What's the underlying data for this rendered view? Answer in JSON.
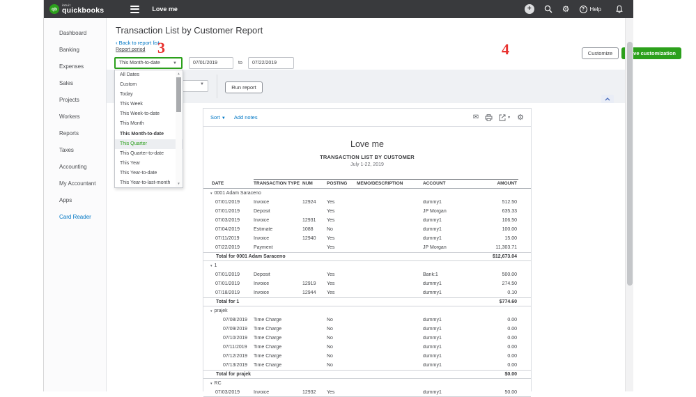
{
  "colors": {
    "brand_green": "#2ca01c",
    "link_blue": "#0077c5",
    "topbar_bg": "#393a3d",
    "annotation_red": "#e8312e",
    "selected_option_bg": "#eceef1"
  },
  "topbar": {
    "brand_intuit": "intuit",
    "brand_name": "quickbooks",
    "logo_monogram": "qb",
    "company": "Love me",
    "plus_glyph": "+",
    "help_question": "?",
    "help_label": "Help"
  },
  "sidebar": {
    "items": [
      {
        "label": "Dashboard",
        "accent": false
      },
      {
        "label": "Banking",
        "accent": false
      },
      {
        "label": "Expenses",
        "accent": false
      },
      {
        "label": "Sales",
        "accent": false
      },
      {
        "label": "Projects",
        "accent": false
      },
      {
        "label": "Workers",
        "accent": false
      },
      {
        "label": "Reports",
        "accent": false
      },
      {
        "label": "Taxes",
        "accent": false
      },
      {
        "label": "Accounting",
        "accent": false
      },
      {
        "label": "My Accountant",
        "accent": false
      },
      {
        "label": "Apps",
        "accent": false
      },
      {
        "label": "Card Reader",
        "accent": true
      }
    ]
  },
  "header": {
    "title": "Transaction List by Customer Report",
    "back_chevron": "‹",
    "back_link": "Back to report list",
    "report_period_label": "Report period",
    "period_value": "This Month-to-date",
    "date_from": "07/01/2019",
    "to_label": "to",
    "date_to": "07/22/2019",
    "customize_label": "Customize",
    "save_customization_label": "Save customization",
    "run_report_label": "Run report",
    "annotation_3": "3",
    "annotation_4": "4",
    "caret_glyph": "▼",
    "scroll_up_glyph": "▲",
    "scroll_down_glyph": "▼"
  },
  "period_menu": {
    "options": [
      {
        "label": "All Dates",
        "bold": false,
        "selected": false
      },
      {
        "label": "Custom",
        "bold": false,
        "selected": false
      },
      {
        "label": "Today",
        "bold": false,
        "selected": false
      },
      {
        "label": "This Week",
        "bold": false,
        "selected": false
      },
      {
        "label": "This Week-to-date",
        "bold": false,
        "selected": false
      },
      {
        "label": "This Month",
        "bold": false,
        "selected": false
      },
      {
        "label": "This Month-to-date",
        "bold": true,
        "selected": false
      },
      {
        "label": "This Quarter",
        "bold": false,
        "selected": true
      },
      {
        "label": "This Quarter-to-date",
        "bold": false,
        "selected": false
      },
      {
        "label": "This Year",
        "bold": false,
        "selected": false
      },
      {
        "label": "This Year-to-date",
        "bold": false,
        "selected": false
      },
      {
        "label": "This Year-to-last-month",
        "bold": false,
        "selected": false
      }
    ]
  },
  "report": {
    "toolbar": {
      "sort_label": "Sort",
      "add_notes_label": "Add notes"
    },
    "company": "Love me",
    "title": "TRANSACTION LIST BY CUSTOMER",
    "date_range": "July 1-22, 2019",
    "table": {
      "columns": [
        "DATE",
        "TRANSACTION TYPE",
        "NUM",
        "POSTING",
        "MEMO/DESCRIPTION",
        "ACCOUNT",
        "AMOUNT"
      ],
      "group_caret": "▾",
      "rows": [
        {
          "type": "group",
          "label": "0001 Adam Saraceno"
        },
        {
          "type": "data",
          "date": "07/01/2019",
          "txn_type": "Invoice",
          "num": "12924",
          "posting": "Yes",
          "memo": "",
          "account": "dummy1",
          "amount": "512.50",
          "indent": 0
        },
        {
          "type": "data",
          "date": "07/01/2019",
          "txn_type": "Deposit",
          "num": "",
          "posting": "Yes",
          "memo": "",
          "account": "JP Morgan",
          "amount": "635.33",
          "indent": 0
        },
        {
          "type": "data",
          "date": "07/03/2019",
          "txn_type": "Invoice",
          "num": "12931",
          "posting": "Yes",
          "memo": "",
          "account": "dummy1",
          "amount": "106.50",
          "indent": 0
        },
        {
          "type": "data",
          "date": "07/04/2019",
          "txn_type": "Estimate",
          "num": "1088",
          "posting": "No",
          "memo": "",
          "account": "dummy1",
          "amount": "100.00",
          "indent": 0
        },
        {
          "type": "data",
          "date": "07/11/2019",
          "txn_type": "Invoice",
          "num": "12940",
          "posting": "Yes",
          "memo": "",
          "account": "dummy1",
          "amount": "15.00",
          "indent": 0
        },
        {
          "type": "data",
          "date": "07/22/2019",
          "txn_type": "Payment",
          "num": "",
          "posting": "Yes",
          "memo": "",
          "account": "JP Morgan",
          "amount": "11,303.71",
          "indent": 0
        },
        {
          "type": "total",
          "label": "Total for 0001 Adam Saraceno",
          "amount": "$12,673.04"
        },
        {
          "type": "group",
          "label": "1"
        },
        {
          "type": "data",
          "date": "07/01/2019",
          "txn_type": "Deposit",
          "num": "",
          "posting": "Yes",
          "memo": "",
          "account": "Bank:1",
          "amount": "500.00",
          "indent": 0
        },
        {
          "type": "data",
          "date": "07/01/2019",
          "txn_type": "Invoice",
          "num": "12919",
          "posting": "Yes",
          "memo": "",
          "account": "dummy1",
          "amount": "274.50",
          "indent": 0
        },
        {
          "type": "data",
          "date": "07/18/2019",
          "txn_type": "Invoice",
          "num": "12944",
          "posting": "Yes",
          "memo": "",
          "account": "dummy1",
          "amount": "0.10",
          "indent": 0
        },
        {
          "type": "total",
          "label": "Total for 1",
          "amount": "$774.60"
        },
        {
          "type": "group",
          "label": "prajek"
        },
        {
          "type": "data",
          "date": "07/08/2019",
          "txn_type": "Time Charge",
          "num": "",
          "posting": "No",
          "memo": "",
          "account": "dummy1",
          "amount": "0.00",
          "indent": 1
        },
        {
          "type": "data",
          "date": "07/09/2019",
          "txn_type": "Time Charge",
          "num": "",
          "posting": "No",
          "memo": "",
          "account": "dummy1",
          "amount": "0.00",
          "indent": 1
        },
        {
          "type": "data",
          "date": "07/10/2019",
          "txn_type": "Time Charge",
          "num": "",
          "posting": "No",
          "memo": "",
          "account": "dummy1",
          "amount": "0.00",
          "indent": 1
        },
        {
          "type": "data",
          "date": "07/11/2019",
          "txn_type": "Time Charge",
          "num": "",
          "posting": "No",
          "memo": "",
          "account": "dummy1",
          "amount": "0.00",
          "indent": 1
        },
        {
          "type": "data",
          "date": "07/12/2019",
          "txn_type": "Time Charge",
          "num": "",
          "posting": "No",
          "memo": "",
          "account": "dummy1",
          "amount": "0.00",
          "indent": 1
        },
        {
          "type": "data",
          "date": "07/13/2019",
          "txn_type": "Time Charge",
          "num": "",
          "posting": "No",
          "memo": "",
          "account": "dummy1",
          "amount": "0.00",
          "indent": 1
        },
        {
          "type": "total",
          "label": "Total for prajek",
          "amount": "$0.00"
        },
        {
          "type": "group",
          "label": "RC"
        },
        {
          "type": "data",
          "date": "07/03/2019",
          "txn_type": "Invoice",
          "num": "12932",
          "posting": "Yes",
          "memo": "",
          "account": "dummy1",
          "amount": "50.00",
          "indent": 0,
          "last": true
        }
      ]
    }
  }
}
